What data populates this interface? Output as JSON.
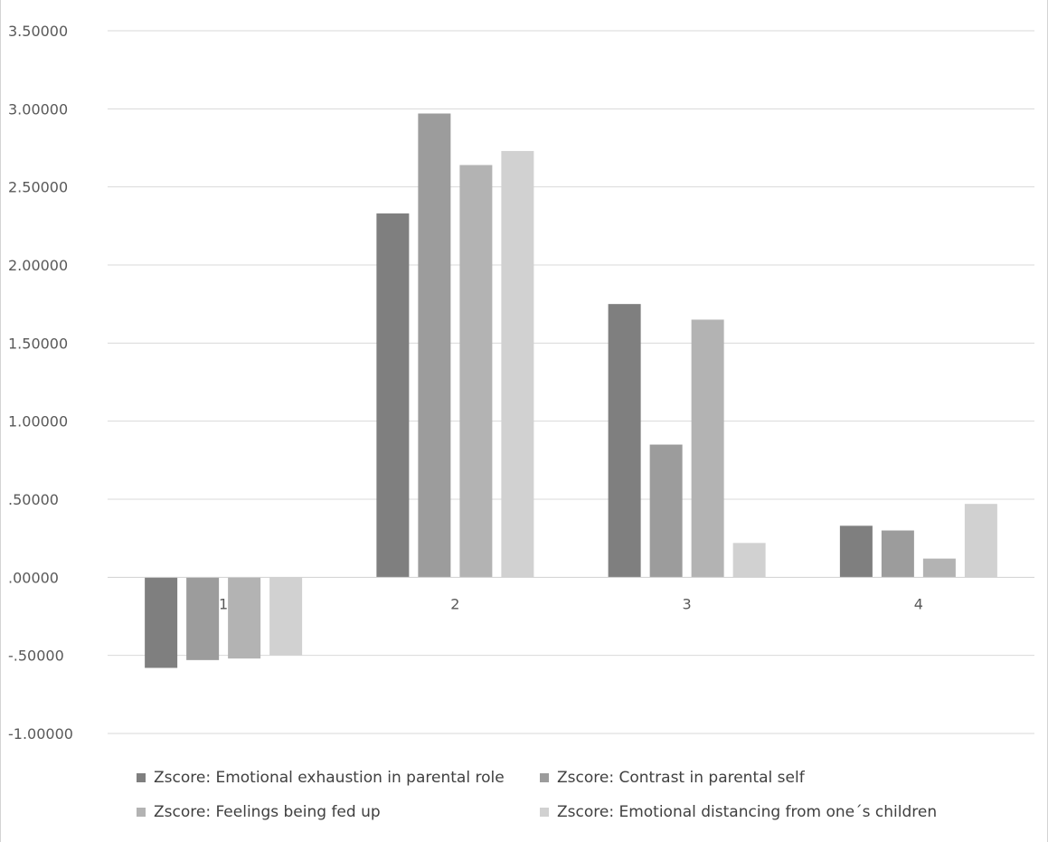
{
  "chart_data": {
    "type": "bar",
    "categories": [
      "1",
      "2",
      "3",
      "4"
    ],
    "series": [
      {
        "name": "Zscore: Emotional exhaustion in parental role",
        "color": "#7f7f7f",
        "values": [
          -0.58,
          2.33,
          1.75,
          0.33
        ]
      },
      {
        "name": "Zscore: Contrast in parental self",
        "color": "#9c9c9c",
        "values": [
          -0.53,
          2.97,
          0.85,
          0.3
        ]
      },
      {
        "name": "Zscore: Feelings being fed up",
        "color": "#b3b3b3",
        "values": [
          -0.52,
          2.64,
          1.65,
          0.12
        ]
      },
      {
        "name": "Zscore: Emotional distancing from one´s children",
        "color": "#d1d1d1",
        "values": [
          -0.5,
          2.73,
          0.22,
          0.47
        ]
      }
    ],
    "ylim": [
      -1.0,
      3.5
    ],
    "yticks": [
      {
        "value": 3.5,
        "label": "3.50000"
      },
      {
        "value": 3.0,
        "label": "3.00000"
      },
      {
        "value": 2.5,
        "label": "2.50000"
      },
      {
        "value": 2.0,
        "label": "2.00000"
      },
      {
        "value": 1.5,
        "label": "1.50000"
      },
      {
        "value": 1.0,
        "label": "1.00000"
      },
      {
        "value": 0.5,
        "label": ".50000"
      },
      {
        "value": 0.0,
        "label": ".00000"
      },
      {
        "value": -0.5,
        "label": "-.50000"
      },
      {
        "value": -1.0,
        "label": "-1.00000"
      }
    ],
    "grid": true,
    "legend_position": "bottom"
  }
}
